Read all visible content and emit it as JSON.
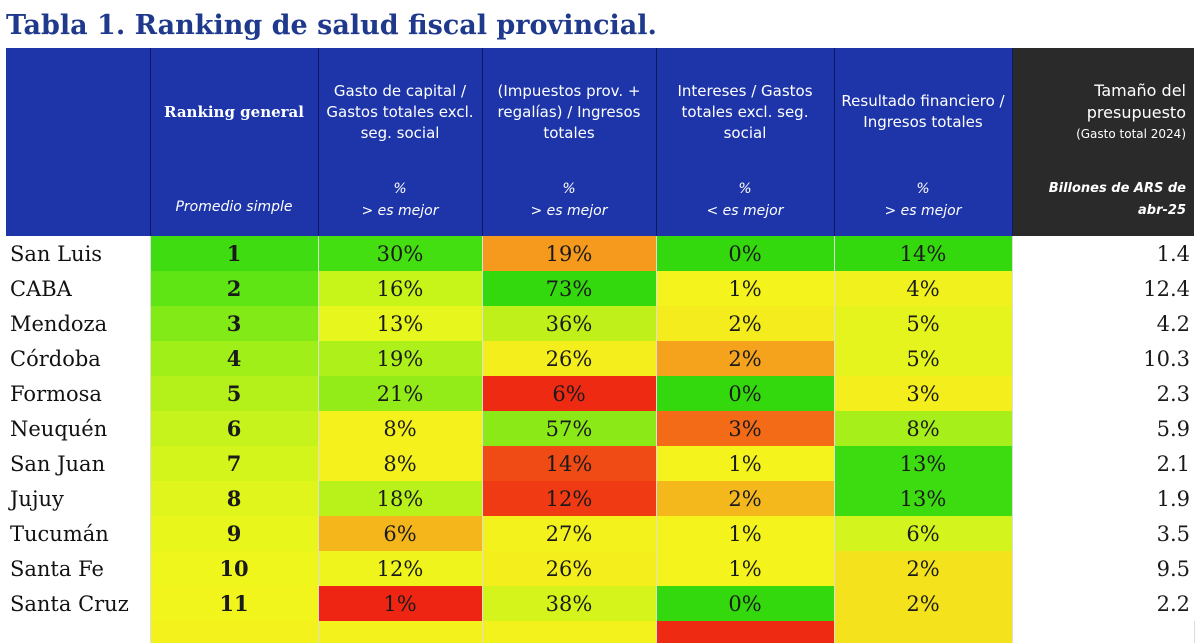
{
  "title": "Tabla 1. Ranking de salud fiscal provincial.",
  "header": {
    "ranking": "Ranking general",
    "ranking_sub": "Promedio simple",
    "columns": [
      {
        "label": "Gasto de capital / Gastos totales excl. seg. social",
        "unit": "%",
        "direction": "> es mejor"
      },
      {
        "label": "(Impuestos prov. + regalías) / Ingresos totales",
        "unit": "%",
        "direction": "> es mejor"
      },
      {
        "label": "Intereses / Gastos totales excl. seg. social",
        "unit": "%",
        "direction": "< es mejor"
      },
      {
        "label": "Resultado financiero / Ingresos totales",
        "unit": "%",
        "direction": "> es mejor"
      }
    ],
    "size_label": "Tamaño del presupuesto",
    "size_sub": "(Gasto total 2024)",
    "size_unit": "Billones de ARS de abr-25"
  },
  "rows": [
    {
      "name": "San Luis",
      "rank": "1",
      "rank_color": "#3fdc12",
      "vals": [
        {
          "v": "30%",
          "c": "#44df10"
        },
        {
          "v": "19%",
          "c": "#f59a1c"
        },
        {
          "v": "0%",
          "c": "#33d90d"
        },
        {
          "v": "14%",
          "c": "#33d90d"
        }
      ],
      "size": "1.4"
    },
    {
      "name": "CABA",
      "rank": "2",
      "rank_color": "#5fe414",
      "vals": [
        {
          "v": "16%",
          "c": "#c7f51a"
        },
        {
          "v": "73%",
          "c": "#33d90d"
        },
        {
          "v": "1%",
          "c": "#f4f41c"
        },
        {
          "v": "4%",
          "c": "#f1f21d"
        }
      ],
      "size": "12.4"
    },
    {
      "name": "Mendoza",
      "rank": "3",
      "rank_color": "#82ea16",
      "vals": [
        {
          "v": "13%",
          "c": "#e7f61c"
        },
        {
          "v": "36%",
          "c": "#c0f01a"
        },
        {
          "v": "2%",
          "c": "#f4ec1c"
        },
        {
          "v": "5%",
          "c": "#e5f41c"
        }
      ],
      "size": "4.2"
    },
    {
      "name": "Córdoba",
      "rank": "4",
      "rank_color": "#a0ef18",
      "vals": [
        {
          "v": "19%",
          "c": "#aef11a"
        },
        {
          "v": "26%",
          "c": "#f4ef1c"
        },
        {
          "v": "2%",
          "c": "#f5a21c"
        },
        {
          "v": "5%",
          "c": "#e5f41c"
        }
      ],
      "size": "10.3"
    },
    {
      "name": "Formosa",
      "rank": "5",
      "rank_color": "#b4f11a",
      "vals": [
        {
          "v": "21%",
          "c": "#93ec18"
        },
        {
          "v": "6%",
          "c": "#ee2a12"
        },
        {
          "v": "0%",
          "c": "#33d90d"
        },
        {
          "v": "3%",
          "c": "#f4ef1c"
        }
      ],
      "size": "2.3"
    },
    {
      "name": "Neuquén",
      "rank": "6",
      "rank_color": "#c5f31b",
      "vals": [
        {
          "v": "8%",
          "c": "#f4f11c"
        },
        {
          "v": "57%",
          "c": "#8ae916"
        },
        {
          "v": "3%",
          "c": "#f36a17"
        },
        {
          "v": "8%",
          "c": "#a7ef1a"
        }
      ],
      "size": "5.9"
    },
    {
      "name": "San Juan",
      "rank": "7",
      "rank_color": "#d4f51c",
      "vals": [
        {
          "v": "8%",
          "c": "#f4f11c"
        },
        {
          "v": "14%",
          "c": "#f04a15"
        },
        {
          "v": "1%",
          "c": "#f4f41c"
        },
        {
          "v": "13%",
          "c": "#3ddc10"
        }
      ],
      "size": "2.1"
    },
    {
      "name": "Jujuy",
      "rank": "8",
      "rank_color": "#e0f51c",
      "vals": [
        {
          "v": "18%",
          "c": "#b9f21a"
        },
        {
          "v": "12%",
          "c": "#ef3a14"
        },
        {
          "v": "2%",
          "c": "#f5b81c"
        },
        {
          "v": "13%",
          "c": "#3ddc10"
        }
      ],
      "size": "1.9"
    },
    {
      "name": "Tucumán",
      "rank": "9",
      "rank_color": "#e8f61c",
      "vals": [
        {
          "v": "6%",
          "c": "#f5b61c"
        },
        {
          "v": "27%",
          "c": "#f4f21c"
        },
        {
          "v": "1%",
          "c": "#f4f41c"
        },
        {
          "v": "6%",
          "c": "#d3f41c"
        }
      ],
      "size": "3.5"
    },
    {
      "name": "Santa Fe",
      "rank": "10",
      "rank_color": "#eef61c",
      "vals": [
        {
          "v": "12%",
          "c": "#eff51c"
        },
        {
          "v": "26%",
          "c": "#f4ef1c"
        },
        {
          "v": "1%",
          "c": "#f4f41c"
        },
        {
          "v": "2%",
          "c": "#f4e31c"
        }
      ],
      "size": "9.5"
    },
    {
      "name": "Santa Cruz",
      "rank": "11",
      "rank_color": "#f2f51c",
      "vals": [
        {
          "v": "1%",
          "c": "#ee2512"
        },
        {
          "v": "38%",
          "c": "#d4f41c"
        },
        {
          "v": "0%",
          "c": "#33d90d"
        },
        {
          "v": "2%",
          "c": "#f4e31c"
        }
      ],
      "size": "2.2"
    }
  ],
  "partial_row": {
    "rank_color": "#f4f21c",
    "colors": [
      "#f4f21c",
      "#f4f21c",
      "#ee2a12",
      "#f4e31c"
    ]
  }
}
